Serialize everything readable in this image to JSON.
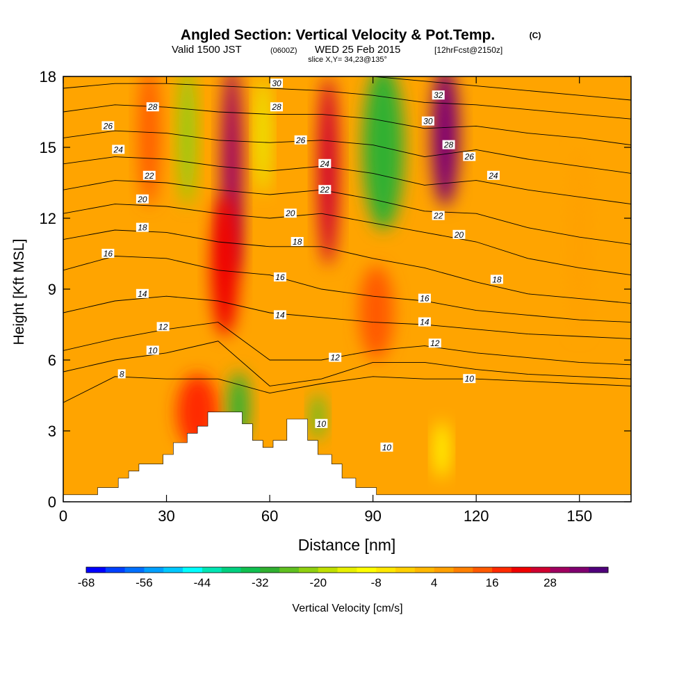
{
  "chart_data": {
    "type": "heatmap",
    "title": "Angled Section: Vertical Velocity & Pot.Temp.",
    "title_unit": "(C)",
    "subtitle_valid": "Valid 1500 JST",
    "subtitle_utc": "(0600Z)",
    "subtitle_date": "WED 25 Feb 2015",
    "subtitle_fcst": "[12hrFcst@2150z]",
    "subtitle_slice": "slice X,Y= 34,23@135°",
    "xlabel": "Distance [nm]",
    "ylabel": "Height [Kft MSL]",
    "xlim": [
      0,
      165
    ],
    "ylim": [
      0,
      18
    ],
    "x_ticks": [
      0,
      30,
      60,
      90,
      120,
      150
    ],
    "y_ticks": [
      0,
      3,
      6,
      9,
      12,
      15,
      18
    ],
    "grid": false,
    "colorbar": {
      "label": "Vertical Velocity [cm/s]",
      "placement": "bottom",
      "levels": [
        -68,
        -64,
        -60,
        -56,
        -52,
        -48,
        -44,
        -40,
        -36,
        -32,
        -28,
        -24,
        -20,
        -16,
        -12,
        -8,
        -4,
        0,
        4,
        8,
        12,
        16,
        20,
        24,
        28,
        32,
        36
      ],
      "tick_labels": [
        -68,
        -56,
        -44,
        -32,
        -20,
        -8,
        4,
        16,
        28
      ],
      "colors": [
        "#0000ff",
        "#0040ff",
        "#0070ff",
        "#00a0ff",
        "#00c8ff",
        "#00ffff",
        "#00e6b4",
        "#00d080",
        "#10c050",
        "#30b030",
        "#60c020",
        "#90d010",
        "#c0e000",
        "#e8f000",
        "#ffff00",
        "#ffe800",
        "#ffd000",
        "#ffb800",
        "#ffa000",
        "#ff8000",
        "#ff5a00",
        "#ff2a00",
        "#f00000",
        "#d00030",
        "#a00060",
        "#800070",
        "#50007c"
      ]
    },
    "terrain": [
      [
        0,
        0.3
      ],
      [
        10,
        0.3
      ],
      [
        10,
        0.6
      ],
      [
        16,
        0.6
      ],
      [
        16,
        1.0
      ],
      [
        19,
        1.0
      ],
      [
        19,
        1.3
      ],
      [
        22,
        1.3
      ],
      [
        22,
        1.6
      ],
      [
        29,
        1.6
      ],
      [
        29,
        2.0
      ],
      [
        32,
        2.0
      ],
      [
        32,
        2.5
      ],
      [
        36,
        2.5
      ],
      [
        36,
        2.9
      ],
      [
        39,
        2.9
      ],
      [
        39,
        3.2
      ],
      [
        42,
        3.2
      ],
      [
        42,
        3.8
      ],
      [
        52,
        3.8
      ],
      [
        52,
        3.3
      ],
      [
        55,
        3.3
      ],
      [
        55,
        2.6
      ],
      [
        58,
        2.6
      ],
      [
        58,
        2.3
      ],
      [
        61,
        2.3
      ],
      [
        61,
        2.6
      ],
      [
        65,
        2.6
      ],
      [
        65,
        3.5
      ],
      [
        71,
        3.5
      ],
      [
        71,
        2.6
      ],
      [
        74,
        2.6
      ],
      [
        74,
        2.0
      ],
      [
        78,
        2.0
      ],
      [
        78,
        1.6
      ],
      [
        81,
        1.6
      ],
      [
        81,
        1.0
      ],
      [
        85,
        1.0
      ],
      [
        85,
        0.6
      ],
      [
        91,
        0.6
      ],
      [
        91,
        0.3
      ],
      [
        165,
        0.3
      ],
      [
        165,
        0
      ],
      [
        0,
        0
      ]
    ],
    "velocity_cells": [
      {
        "x": 25,
        "y": 15.5,
        "rx": 3,
        "ry": 3,
        "value": 14
      },
      {
        "x": 49,
        "y": 14.0,
        "rx": 3,
        "ry": 4.5,
        "value": 28
      },
      {
        "x": 47,
        "y": 10.0,
        "rx": 4,
        "ry": 3,
        "value": 20
      },
      {
        "x": 77,
        "y": 14.0,
        "rx": 3,
        "ry": 4,
        "value": 24
      },
      {
        "x": 111,
        "y": 15.5,
        "rx": 4,
        "ry": 3,
        "value": 32
      },
      {
        "x": 39,
        "y": 3.8,
        "rx": 6,
        "ry": 1.6,
        "value": 16
      },
      {
        "x": 91,
        "y": 8.0,
        "rx": 5,
        "ry": 2,
        "value": 12
      },
      {
        "x": 93,
        "y": 15.0,
        "rx": 6,
        "ry": 3.5,
        "value": -30
      },
      {
        "x": 36,
        "y": 15.5,
        "rx": 2.5,
        "ry": 3,
        "value": -24
      },
      {
        "x": 58,
        "y": 15.5,
        "rx": 2,
        "ry": 2.5,
        "value": -16
      },
      {
        "x": 51,
        "y": 4.0,
        "rx": 3,
        "ry": 1.5,
        "value": -30
      },
      {
        "x": 74,
        "y": 3.6,
        "rx": 2,
        "ry": 1.0,
        "value": -28
      },
      {
        "x": 110,
        "y": 2.2,
        "rx": 2,
        "ry": 1.2,
        "value": -12
      },
      {
        "x": 150,
        "y": 11.0,
        "rx": 3,
        "ry": 4,
        "value": 6
      }
    ],
    "theta_contours": [
      {
        "label": "8",
        "x": [
          0,
          15,
          30,
          45,
          60,
          75,
          90,
          105,
          120,
          135,
          150,
          165
        ],
        "y": [
          4.2,
          5.3,
          5.2,
          5.2,
          4.6,
          5.0,
          5.3,
          5.2,
          5.2,
          5.1,
          5.0,
          4.9
        ],
        "label_at": [
          17,
          5.4
        ]
      },
      {
        "label": "10",
        "x": [
          0,
          15,
          30,
          45,
          60,
          75,
          90,
          105,
          120,
          135,
          150,
          165
        ],
        "y": [
          5.5,
          6.0,
          6.3,
          6.8,
          4.9,
          5.2,
          5.9,
          5.9,
          5.6,
          5.4,
          5.3,
          5.2
        ],
        "label_at": [
          26,
          6.3
        ]
      },
      {
        "label": "12",
        "x": [
          0,
          15,
          30,
          45,
          60,
          75,
          90,
          105,
          120,
          135,
          150,
          165
        ],
        "y": [
          6.4,
          6.9,
          7.3,
          7.6,
          6.0,
          6.0,
          6.4,
          6.6,
          6.3,
          6.1,
          5.9,
          5.8
        ],
        "label_at": [
          79,
          6.1
        ]
      },
      {
        "label": "14",
        "x": [
          0,
          15,
          30,
          45,
          60,
          75,
          90,
          105,
          120,
          135,
          150,
          165
        ],
        "y": [
          8.0,
          8.5,
          8.7,
          8.5,
          8.0,
          7.8,
          7.6,
          7.5,
          7.3,
          7.1,
          7.0,
          6.9
        ],
        "label_at": [
          63,
          7.9
        ]
      },
      {
        "label": "16",
        "x": [
          0,
          15,
          30,
          45,
          60,
          75,
          90,
          105,
          120,
          135,
          150,
          165
        ],
        "y": [
          9.8,
          10.4,
          10.3,
          9.8,
          9.6,
          9.0,
          8.7,
          8.5,
          8.1,
          7.9,
          7.7,
          7.6
        ],
        "label_at": [
          63,
          9.5
        ]
      },
      {
        "label": "18",
        "x": [
          0,
          15,
          30,
          45,
          60,
          75,
          90,
          105,
          120,
          135,
          150,
          165
        ],
        "y": [
          11.1,
          11.5,
          11.4,
          11.0,
          10.8,
          10.8,
          10.3,
          9.9,
          9.3,
          8.8,
          8.6,
          8.4
        ],
        "label_at": [
          68,
          10.9
        ]
      },
      {
        "label": "20",
        "x": [
          0,
          15,
          30,
          45,
          60,
          75,
          90,
          105,
          120,
          135,
          150,
          165
        ],
        "y": [
          12.2,
          12.6,
          12.5,
          12.2,
          12.0,
          12.2,
          11.8,
          11.4,
          11.0,
          10.3,
          9.9,
          9.6
        ],
        "label_at": [
          66,
          12.2
        ]
      },
      {
        "label": "22",
        "x": [
          0,
          15,
          30,
          45,
          60,
          75,
          90,
          105,
          120,
          135,
          150,
          165
        ],
        "y": [
          13.2,
          13.6,
          13.5,
          13.2,
          13.0,
          13.2,
          12.8,
          12.3,
          12.2,
          11.6,
          11.2,
          10.9
        ],
        "label_at": [
          76,
          13.2
        ]
      },
      {
        "label": "24",
        "x": [
          0,
          15,
          30,
          45,
          60,
          75,
          90,
          105,
          120,
          135,
          150,
          165
        ],
        "y": [
          14.3,
          14.6,
          14.5,
          14.2,
          14.0,
          14.2,
          13.9,
          13.4,
          13.6,
          13.2,
          12.9,
          12.6
        ],
        "label_at": [
          76,
          14.2
        ]
      },
      {
        "label": "26",
        "x": [
          0,
          15,
          30,
          45,
          60,
          75,
          90,
          105,
          120,
          135,
          150,
          165
        ],
        "y": [
          15.4,
          15.7,
          15.6,
          15.3,
          15.2,
          15.3,
          15.1,
          14.6,
          14.9,
          14.5,
          14.2,
          13.9
        ],
        "label_at": [
          69,
          15.3
        ]
      },
      {
        "label": "28",
        "x": [
          0,
          15,
          30,
          45,
          60,
          75,
          90,
          105,
          120,
          135,
          150,
          165
        ],
        "y": [
          16.5,
          16.8,
          16.7,
          16.5,
          16.4,
          16.4,
          16.2,
          15.8,
          15.9,
          15.6,
          15.4,
          15.1
        ],
        "label_at": [
          63,
          16.6
        ]
      },
      {
        "label": "30",
        "x": [
          0,
          15,
          30,
          45,
          60,
          75,
          90,
          105,
          120,
          135,
          150,
          165
        ],
        "y": [
          17.5,
          17.7,
          17.7,
          17.6,
          17.5,
          17.4,
          17.2,
          16.9,
          16.8,
          16.6,
          16.4,
          16.2
        ],
        "label_at": [
          63,
          17.6
        ]
      },
      {
        "label": "32",
        "x": [
          90,
          105,
          120,
          135,
          150,
          165
        ],
        "y": [
          18.0,
          17.8,
          17.6,
          17.4,
          17.2,
          17.0
        ],
        "label_at": [
          108,
          17.2
        ]
      }
    ],
    "contour_labels": [
      {
        "text": "28",
        "x": 26,
        "y": 16.7
      },
      {
        "text": "26",
        "x": 13,
        "y": 15.9
      },
      {
        "text": "24",
        "x": 16,
        "y": 14.9
      },
      {
        "text": "22",
        "x": 25,
        "y": 13.8
      },
      {
        "text": "20",
        "x": 23,
        "y": 12.8
      },
      {
        "text": "18",
        "x": 23,
        "y": 11.6
      },
      {
        "text": "16",
        "x": 13,
        "y": 10.5
      },
      {
        "text": "14",
        "x": 23,
        "y": 8.8
      },
      {
        "text": "12",
        "x": 29,
        "y": 7.4
      },
      {
        "text": "10",
        "x": 26,
        "y": 6.4
      },
      {
        "text": "8",
        "x": 17,
        "y": 5.4
      },
      {
        "text": "30",
        "x": 62,
        "y": 17.7
      },
      {
        "text": "28",
        "x": 62,
        "y": 16.7
      },
      {
        "text": "26",
        "x": 69,
        "y": 15.3
      },
      {
        "text": "24",
        "x": 76,
        "y": 14.3
      },
      {
        "text": "22",
        "x": 76,
        "y": 13.2
      },
      {
        "text": "20",
        "x": 66,
        "y": 12.2
      },
      {
        "text": "18",
        "x": 68,
        "y": 11.0
      },
      {
        "text": "16",
        "x": 63,
        "y": 9.5
      },
      {
        "text": "14",
        "x": 63,
        "y": 7.9
      },
      {
        "text": "12",
        "x": 79,
        "y": 6.1
      },
      {
        "text": "10",
        "x": 75,
        "y": 3.3
      },
      {
        "text": "10",
        "x": 94,
        "y": 2.3
      },
      {
        "text": "32",
        "x": 109,
        "y": 17.2
      },
      {
        "text": "30",
        "x": 106,
        "y": 16.1
      },
      {
        "text": "28",
        "x": 112,
        "y": 15.1
      },
      {
        "text": "26",
        "x": 118,
        "y": 14.6
      },
      {
        "text": "24",
        "x": 125,
        "y": 13.8
      },
      {
        "text": "22",
        "x": 109,
        "y": 12.1
      },
      {
        "text": "20",
        "x": 115,
        "y": 11.3
      },
      {
        "text": "18",
        "x": 126,
        "y": 9.4
      },
      {
        "text": "16",
        "x": 105,
        "y": 8.6
      },
      {
        "text": "14",
        "x": 105,
        "y": 7.6
      },
      {
        "text": "12",
        "x": 108,
        "y": 6.7
      },
      {
        "text": "10",
        "x": 118,
        "y": 5.2
      }
    ]
  }
}
